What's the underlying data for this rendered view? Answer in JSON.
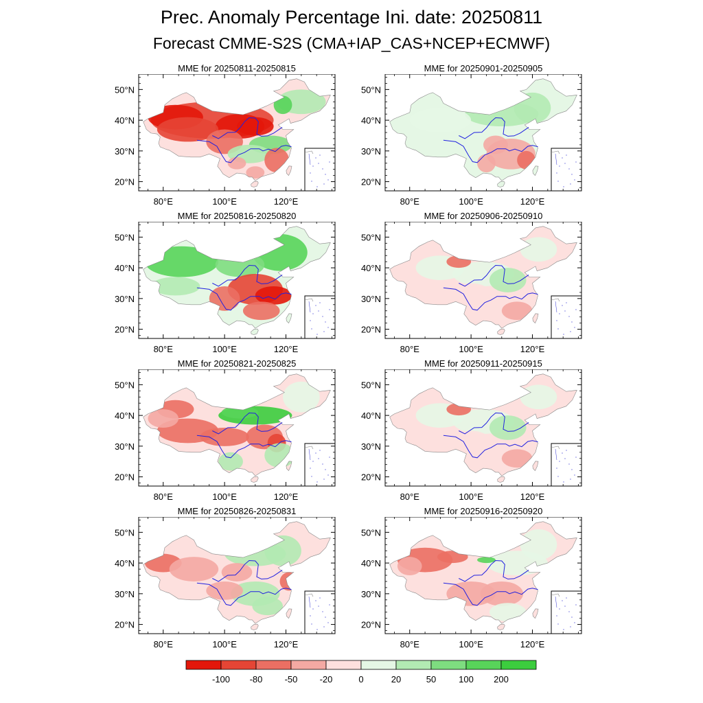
{
  "title": "Prec. Anomaly Percentage Ini. date: 20250811",
  "subtitle": "Forecast CMME-S2S (CMA+IAP_CAS+NCEP+ECMWF)",
  "panels": [
    {
      "title": "MME for 20250811-20250815",
      "pattern": "dry-north"
    },
    {
      "title": "MME for 20250901-20250905",
      "pattern": "weak-wet-north"
    },
    {
      "title": "MME for 20250816-20250820",
      "pattern": "wet-north-dry-center"
    },
    {
      "title": "MME for 20250906-20250910",
      "pattern": "weak-mixed"
    },
    {
      "title": "MME for 20250821-20250825",
      "pattern": "wet-north-dry-west"
    },
    {
      "title": "MME for 20250911-20250915",
      "pattern": "weak-mixed"
    },
    {
      "title": "MME for 20250826-20250831",
      "pattern": "mixed"
    },
    {
      "title": "MME for 20250916-20250920",
      "pattern": "weak-dry-west"
    }
  ],
  "axes": {
    "lat_labels": [
      "50°N",
      "40°N",
      "30°N",
      "20°N"
    ],
    "lon_labels": [
      "80°E",
      "100°E",
      "120°E"
    ]
  },
  "legend": {
    "labels": [
      "-100",
      "-80",
      "-50",
      "-20",
      "0",
      "20",
      "50",
      "100",
      "200"
    ],
    "colors": [
      "#e3170a",
      "#e54535",
      "#eb6f63",
      "#f4a9a3",
      "#fde0de",
      "#e5f7e5",
      "#b2eab3",
      "#7edd80",
      "#58d45a",
      "#3ccd3e"
    ]
  }
}
